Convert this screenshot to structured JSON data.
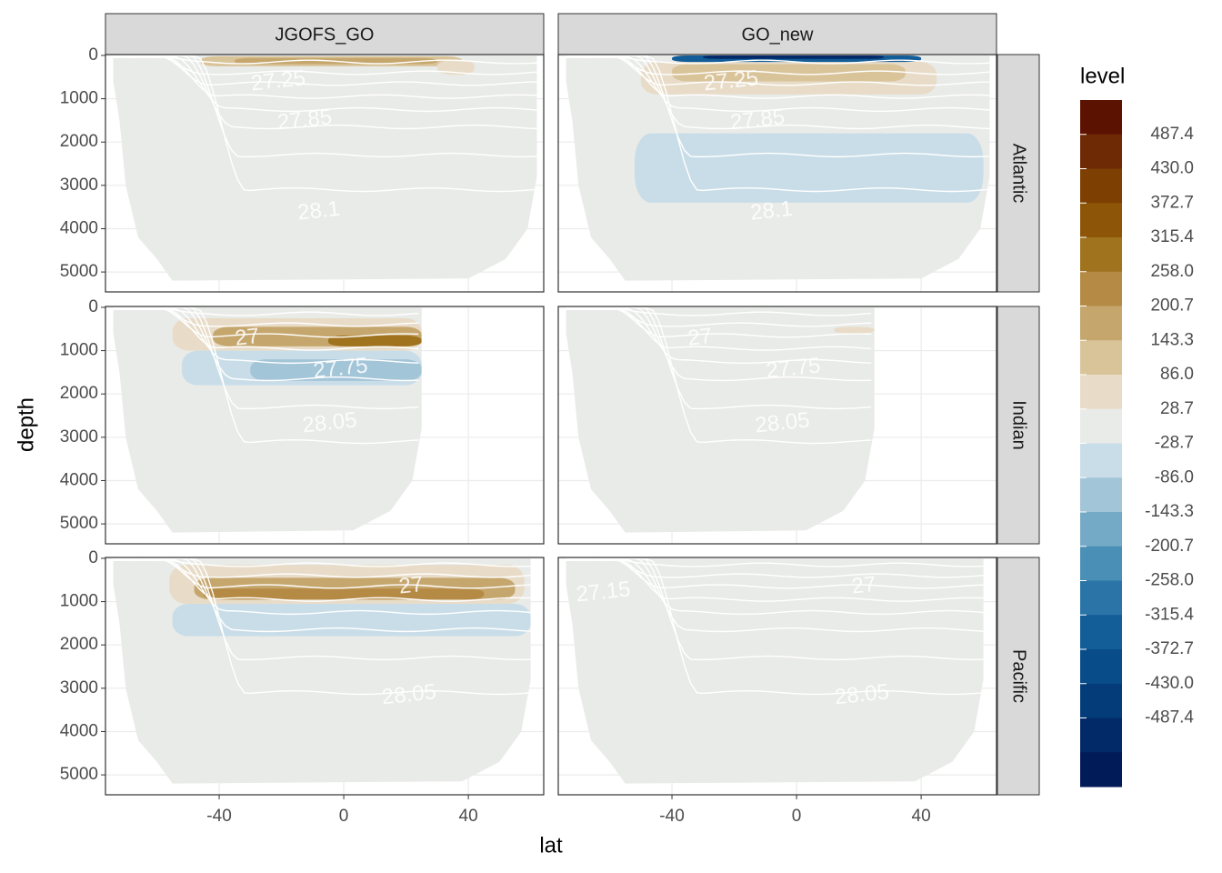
{
  "chart_data": {
    "type": "contour",
    "x_label": "lat",
    "y_label": "depth",
    "columns": [
      "JGOFS_GO",
      "GO_new"
    ],
    "rows": [
      "Atlantic",
      "Indian",
      "Pacific"
    ],
    "xlim": [
      -76.5,
      64.2
    ],
    "xticks": [
      -40,
      0,
      40
    ],
    "ylim": [
      5460,
      -20
    ],
    "yticks": [
      0,
      1000,
      2000,
      3000,
      4000,
      5000
    ],
    "grid": true,
    "legend": {
      "title": "level",
      "position": "right",
      "colors": [
        "#5c1200",
        "#6e2a05",
        "#7e3f02",
        "#8c5507",
        "#a0731f",
        "#b58a44",
        "#c5a66d",
        "#d9c49a",
        "#e8dcc8",
        "#e9ebe8",
        "#c9dde8",
        "#a3c5d8",
        "#74aac6",
        "#4a8fb5",
        "#2a74a8",
        "#135d98",
        "#084d8a",
        "#043c7a",
        "#022a69",
        "#011a58"
      ],
      "breaks": [
        487.4,
        {
          "value": 430,
          "label": "430.0"
        },
        372.7,
        315.4,
        {
          "value": 258,
          "label": "258.0"
        },
        200.7,
        143.3,
        {
          "value": 86,
          "label": "86.0"
        },
        28.7,
        -28.7,
        {
          "value": -86,
          "label": "-86.0"
        },
        -143.3,
        -200.7,
        {
          "value": -258,
          "label": "-258.0"
        },
        -315.4,
        -372.7,
        {
          "value": -430,
          "label": "-430.0"
        },
        -487.4
      ]
    },
    "panels": [
      {
        "labels": [
          {
            "text": "27.25",
            "lat": -21,
            "depth": 610
          },
          {
            "text": "27.85",
            "lat": -12.5,
            "depth": 1510
          },
          {
            "text": "28.1",
            "lat": -8,
            "depth": 3610
          }
        ]
      },
      {
        "labels": [
          {
            "text": "27.25",
            "lat": -21,
            "depth": 610
          },
          {
            "text": "27.85",
            "lat": -12.5,
            "depth": 1510
          },
          {
            "text": "28.1",
            "lat": -8,
            "depth": 3610
          }
        ]
      },
      {
        "labels": [
          {
            "text": "27",
            "lat": -31,
            "depth": 715
          },
          {
            "text": "27.75",
            "lat": -1,
            "depth": 1430
          },
          {
            "text": "28.05",
            "lat": -4.5,
            "depth": 2690
          }
        ]
      },
      {
        "labels": [
          {
            "text": "27",
            "lat": -31,
            "depth": 715
          },
          {
            "text": "27.75",
            "lat": -1,
            "depth": 1430
          },
          {
            "text": "28.05",
            "lat": -4.5,
            "depth": 2690
          }
        ]
      },
      {
        "labels": [
          {
            "text": "27",
            "lat": 21.6,
            "depth": 650
          },
          {
            "text": "28.05",
            "lat": 21,
            "depth": 3170
          }
        ]
      },
      {
        "labels": [
          {
            "text": "27.15",
            "lat": -62,
            "depth": 800
          },
          {
            "text": "27",
            "lat": 21.6,
            "depth": 650
          },
          {
            "text": "28.05",
            "lat": 21,
            "depth": 3170
          }
        ]
      }
    ]
  }
}
